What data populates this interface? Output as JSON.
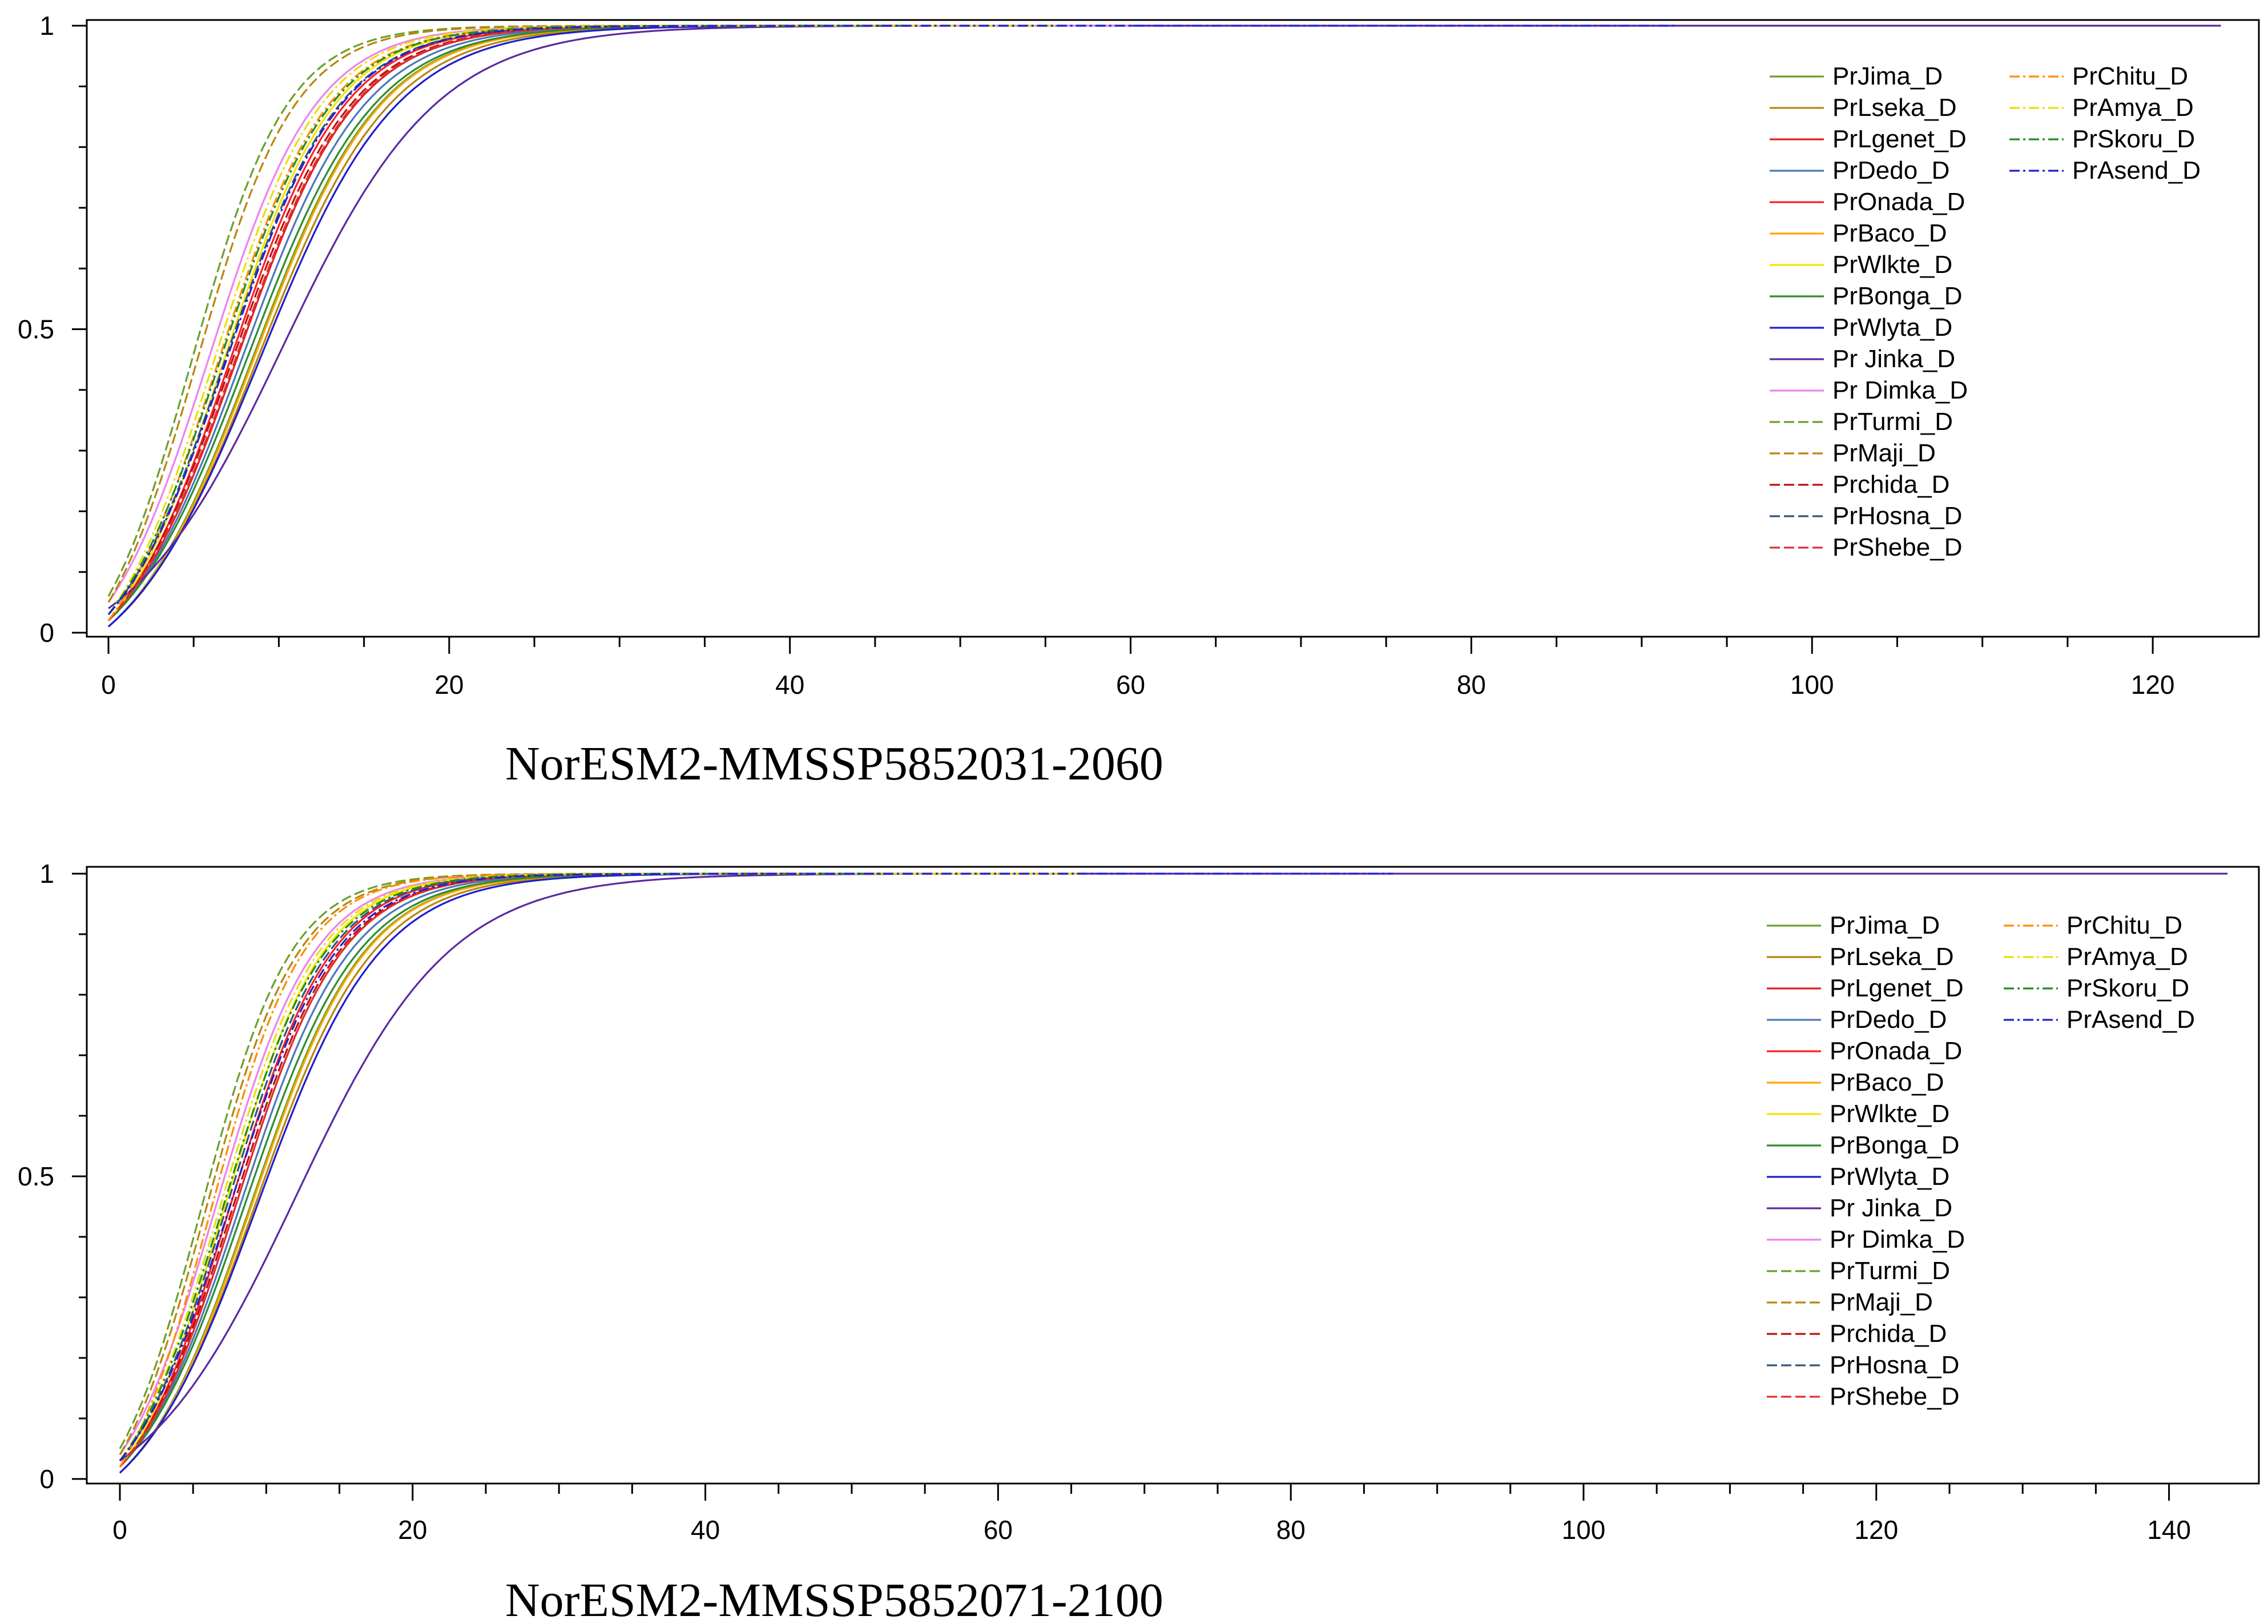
{
  "chart_data": [
    {
      "type": "line",
      "caption": "NorESM2-MMSSP5852031-2060",
      "xlim": [
        0,
        124
      ],
      "ylim": [
        0,
        1
      ],
      "x_ticks": [
        "0",
        "20",
        "40",
        "60",
        "80",
        "100",
        "120"
      ],
      "y_ticks": [
        "0",
        "0.5",
        "1"
      ],
      "x_tick_values": [
        0,
        20,
        40,
        60,
        80,
        100,
        120
      ],
      "y_tick_values": [
        0,
        0.5,
        1
      ],
      "legend_position": "top-right",
      "series": [
        {
          "name": "PrJima_D",
          "color": "#6aa02a",
          "dash": "solid",
          "y0": 0.01,
          "x50": 8.5,
          "k": 0.27,
          "xend": 43
        },
        {
          "name": "PrLseka_D",
          "color": "#b8860b",
          "dash": "solid",
          "y0": 0.01,
          "x50": 8.8,
          "k": 0.26,
          "xend": 45
        },
        {
          "name": "PrLgenet_D",
          "color": "#e02020",
          "dash": "solid",
          "y0": 0.02,
          "x50": 7.6,
          "k": 0.29,
          "xend": 40
        },
        {
          "name": "PrDedo_D",
          "color": "#4a78b8",
          "dash": "solid",
          "y0": 0.02,
          "x50": 7.9,
          "k": 0.28,
          "xend": 42
        },
        {
          "name": "PrOnada_D",
          "color": "#ff2020",
          "dash": "solid",
          "y0": 0.02,
          "x50": 7.2,
          "k": 0.3,
          "xend": 40
        },
        {
          "name": "PrBaco_D",
          "color": "#ffa500",
          "dash": "solid",
          "y0": 0.01,
          "x50": 8.6,
          "k": 0.27,
          "xend": 46
        },
        {
          "name": "PrWlkte_D",
          "color": "#f2e600",
          "dash": "solid",
          "y0": 0.02,
          "x50": 6.8,
          "k": 0.31,
          "xend": 40
        },
        {
          "name": "PrBonga_D",
          "color": "#2e8b2e",
          "dash": "solid",
          "y0": 0.02,
          "x50": 8.2,
          "k": 0.27,
          "xend": 44
        },
        {
          "name": "PrWlyta_D",
          "color": "#1e1ed2",
          "dash": "solid",
          "y0": 0.01,
          "x50": 8.9,
          "k": 0.25,
          "xend": 47
        },
        {
          "name": "Pr Jinka_D",
          "color": "#5a2aa0",
          "dash": "solid",
          "y0": 0.04,
          "x50": 10.2,
          "k": 0.22,
          "xend": 124
        },
        {
          "name": "Pr Dimka_D",
          "color": "#ee82ee",
          "dash": "solid",
          "y0": 0.05,
          "x50": 5.9,
          "k": 0.32,
          "xend": 60
        },
        {
          "name": "PrTurmi_D",
          "color": "#6aa02a",
          "dash": "dashed",
          "y0": 0.06,
          "x50": 4.9,
          "k": 0.36,
          "xend": 40
        },
        {
          "name": "PrMaji_D",
          "color": "#b8860b",
          "dash": "dashed",
          "y0": 0.05,
          "x50": 5.2,
          "k": 0.35,
          "xend": 40
        },
        {
          "name": "Prchida_D",
          "color": "#c01010",
          "dash": "dashed",
          "y0": 0.02,
          "x50": 7.3,
          "k": 0.29,
          "xend": 42
        },
        {
          "name": "PrHosna_D",
          "color": "#335577",
          "dash": "dashed",
          "y0": 0.03,
          "x50": 6.9,
          "k": 0.3,
          "xend": 42
        },
        {
          "name": "PrShebe_D",
          "color": "#e03030",
          "dash": "dashed",
          "y0": 0.02,
          "x50": 7.5,
          "k": 0.29,
          "xend": 42
        },
        {
          "name": "PrChitu_D",
          "color": "#ff8c00",
          "dash": "dashdot",
          "y0": 0.02,
          "x50": 6.4,
          "k": 0.31,
          "xend": 56
        },
        {
          "name": "PrAmya_D",
          "color": "#e8e000",
          "dash": "dashdot",
          "y0": 0.03,
          "x50": 6.2,
          "k": 0.32,
          "xend": 56
        },
        {
          "name": "PrSkoru_D",
          "color": "#228b22",
          "dash": "dashdot",
          "y0": 0.03,
          "x50": 6.6,
          "k": 0.31,
          "xend": 47
        },
        {
          "name": "PrAsend_D",
          "color": "#2222cc",
          "dash": "dashdot",
          "y0": 0.03,
          "x50": 7.0,
          "k": 0.3,
          "xend": 92
        }
      ]
    },
    {
      "type": "line",
      "caption": "NorESM2-MMSSP5852071-2100",
      "xlim": [
        0,
        144
      ],
      "ylim": [
        0,
        1
      ],
      "x_ticks": [
        "0",
        "20",
        "40",
        "60",
        "80",
        "100",
        "120",
        "140"
      ],
      "y_ticks": [
        "0",
        "0.5",
        "1"
      ],
      "x_tick_values": [
        0,
        20,
        40,
        60,
        80,
        100,
        120,
        140
      ],
      "y_tick_values": [
        0,
        0.5,
        1
      ],
      "legend_position": "top-right",
      "series": [
        {
          "name": "PrJima_D",
          "color": "#6aa02a",
          "dash": "solid",
          "y0": 0.01,
          "x50": 9.0,
          "k": 0.26,
          "xend": 45
        },
        {
          "name": "PrLseka_D",
          "color": "#b8860b",
          "dash": "solid",
          "y0": 0.01,
          "x50": 9.3,
          "k": 0.25,
          "xend": 47
        },
        {
          "name": "PrLgenet_D",
          "color": "#e02020",
          "dash": "solid",
          "y0": 0.02,
          "x50": 8.0,
          "k": 0.28,
          "xend": 42
        },
        {
          "name": "PrDedo_D",
          "color": "#4a78b8",
          "dash": "solid",
          "y0": 0.02,
          "x50": 8.3,
          "k": 0.27,
          "xend": 44
        },
        {
          "name": "PrOnada_D",
          "color": "#ff2020",
          "dash": "solid",
          "y0": 0.02,
          "x50": 7.6,
          "k": 0.29,
          "xend": 42
        },
        {
          "name": "PrBaco_D",
          "color": "#ffa500",
          "dash": "solid",
          "y0": 0.01,
          "x50": 9.1,
          "k": 0.26,
          "xend": 48
        },
        {
          "name": "PrWlkte_D",
          "color": "#f2e600",
          "dash": "solid",
          "y0": 0.02,
          "x50": 7.2,
          "k": 0.3,
          "xend": 42
        },
        {
          "name": "PrBonga_D",
          "color": "#2e8b2e",
          "dash": "solid",
          "y0": 0.02,
          "x50": 8.6,
          "k": 0.26,
          "xend": 46
        },
        {
          "name": "PrWlyta_D",
          "color": "#1e1ed2",
          "dash": "solid",
          "y0": 0.01,
          "x50": 9.4,
          "k": 0.24,
          "xend": 50
        },
        {
          "name": "Pr Jinka_D",
          "color": "#5a2aa0",
          "dash": "solid",
          "y0": 0.03,
          "x50": 12.0,
          "k": 0.19,
          "xend": 144
        },
        {
          "name": "Pr Dimka_D",
          "color": "#ee82ee",
          "dash": "solid",
          "y0": 0.04,
          "x50": 6.6,
          "k": 0.3,
          "xend": 66
        },
        {
          "name": "PrTurmi_D",
          "color": "#6aa02a",
          "dash": "dashed",
          "y0": 0.05,
          "x50": 5.6,
          "k": 0.33,
          "xend": 44
        },
        {
          "name": "PrMaji_D",
          "color": "#b8860b",
          "dash": "dashed",
          "y0": 0.04,
          "x50": 5.9,
          "k": 0.32,
          "xend": 44
        },
        {
          "name": "Prchida_D",
          "color": "#c01010",
          "dash": "dashed",
          "y0": 0.02,
          "x50": 7.8,
          "k": 0.28,
          "xend": 44
        },
        {
          "name": "PrHosna_D",
          "color": "#335577",
          "dash": "dashed",
          "y0": 0.03,
          "x50": 7.4,
          "k": 0.29,
          "xend": 44
        },
        {
          "name": "PrShebe_D",
          "color": "#e03030",
          "dash": "dashed",
          "y0": 0.02,
          "x50": 8.0,
          "k": 0.28,
          "xend": 44
        },
        {
          "name": "PrChitu_D",
          "color": "#ff8c00",
          "dash": "dashdot",
          "y0": 0.02,
          "x50": 6.2,
          "k": 0.32,
          "xend": 66
        },
        {
          "name": "PrAmya_D",
          "color": "#e8e000",
          "dash": "dashdot",
          "y0": 0.03,
          "x50": 6.9,
          "k": 0.3,
          "xend": 66
        },
        {
          "name": "PrSkoru_D",
          "color": "#228b22",
          "dash": "dashdot",
          "y0": 0.03,
          "x50": 7.1,
          "k": 0.29,
          "xend": 52
        },
        {
          "name": "PrAsend_D",
          "color": "#2222cc",
          "dash": "dashdot",
          "y0": 0.03,
          "x50": 7.6,
          "k": 0.28,
          "xend": 87
        }
      ]
    }
  ]
}
